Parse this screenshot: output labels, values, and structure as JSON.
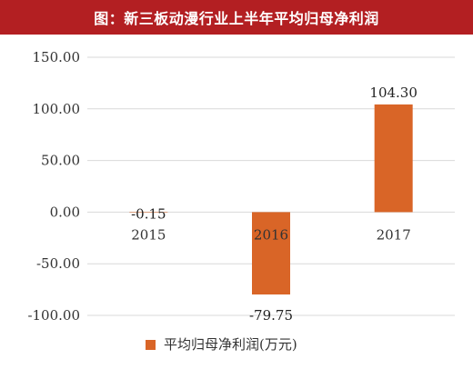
{
  "title": "图：新三板动漫行业上半年平均归母净利润",
  "colors": {
    "title_bg": "#b31f22",
    "title_text": "#ffffff",
    "bar": "#d96527",
    "grid": "#d9d9d9",
    "axis_text": "#333333"
  },
  "chart_data": {
    "type": "bar",
    "title": "图：新三板动漫行业上半年平均归母净利润",
    "categories": [
      "2015",
      "2016",
      "2017"
    ],
    "series": [
      {
        "name": "平均归母净利润(万元)",
        "values": [
          -0.15,
          -79.75,
          104.3
        ],
        "labels": [
          "-0.15",
          "-79.75",
          "104.30"
        ]
      }
    ],
    "y_ticks": [
      "150.00",
      "100.00",
      "50.00",
      "0.00",
      "-50.00",
      "-100.00"
    ],
    "ylim": [
      -100,
      150
    ],
    "xlabel": "",
    "ylabel": "",
    "grid": true,
    "legend": "bottom-center"
  }
}
